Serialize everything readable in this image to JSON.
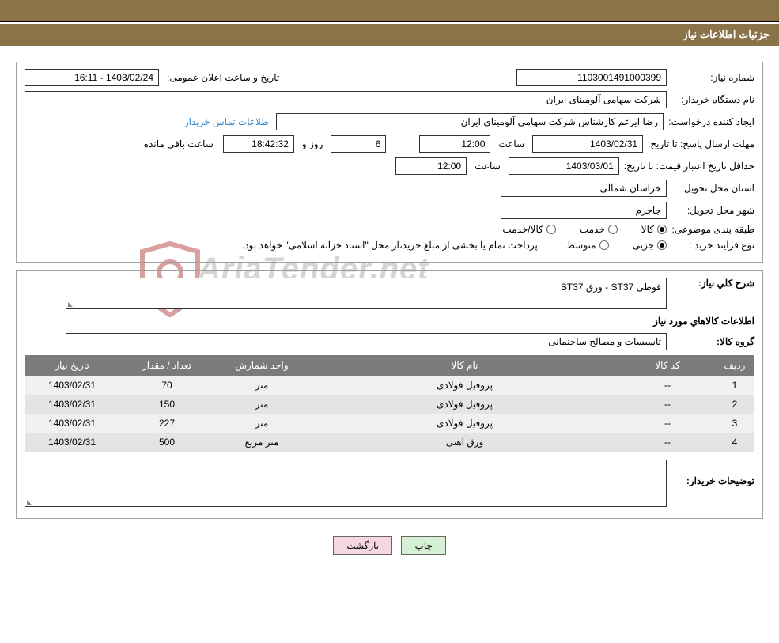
{
  "header": {
    "title": "جزئیات اطلاعات نیاز"
  },
  "watermark": {
    "text": "AriaTender.net",
    "shield_color": "#d9a0a0"
  },
  "info": {
    "need_number_label": "شماره نیاز:",
    "need_number": "1103001491000399",
    "announce_label": "تاریخ و ساعت اعلان عمومی:",
    "announce_value": "1403/02/24 - 16:11",
    "buyer_device_label": "نام دستگاه خریدار:",
    "buyer_device": "شرکت سهامی آلومینای ایران",
    "requester_label": "ایجاد کننده درخواست:",
    "requester": "رضا ایرغم کارشناس شرکت سهامی آلومینای ایران",
    "contact_link": "اطلاعات تماس خریدار",
    "deadline_label": "مهلت ارسال پاسخ: تا تاریخ:",
    "deadline_date": "1403/02/31",
    "time_label": "ساعت",
    "deadline_time": "12:00",
    "days_value": "6",
    "days_and": "روز و",
    "remaining_time": "18:42:32",
    "remaining_label": "ساعت باقي مانده",
    "validity_label": "حداقل تاریخ اعتبار قیمت: تا تاریخ:",
    "validity_date": "1403/03/01",
    "validity_time": "12:00",
    "province_label": "استان محل تحویل:",
    "province": "خراسان شمالی",
    "city_label": "شهر محل تحویل:",
    "city": "جاجرم",
    "category_label": "طبقه بندی موضوعی:",
    "cat_goods": "کالا",
    "cat_service": "خدمت",
    "cat_both": "کالا/خدمت",
    "purchase_type_label": "نوع فرآیند خرید :",
    "purchase_minor": "جزیی",
    "purchase_medium": "متوسط",
    "purchase_note": "پرداخت تمام یا بخشی از مبلغ خرید،از محل \"اسناد خزانه اسلامی\" خواهد بود."
  },
  "details": {
    "overall_desc_label": "شرح كلي نياز:",
    "overall_desc": "قوطی ST37 - ورق ST37",
    "items_header": "اطلاعات كالاهاي مورد نياز",
    "group_label": "گروه کالا:",
    "group_value": "تاسیسات و مصالح ساختمانی",
    "table": {
      "columns": [
        "ردیف",
        "کد کالا",
        "نام کالا",
        "واحد شمارش",
        "تعداد / مقدار",
        "تاریخ نیاز"
      ],
      "col_widths": [
        "50px",
        "120px",
        "auto",
        "120px",
        "120px",
        "120px"
      ],
      "rows": [
        [
          "1",
          "--",
          "پروفیل فولادی",
          "متر",
          "70",
          "1403/02/31"
        ],
        [
          "2",
          "--",
          "پروفیل فولادی",
          "متر",
          "150",
          "1403/02/31"
        ],
        [
          "3",
          "--",
          "پروفیل فولادی",
          "متر",
          "227",
          "1403/02/31"
        ],
        [
          "4",
          "--",
          "ورق آهنی",
          "متر مربع",
          "500",
          "1403/02/31"
        ]
      ]
    },
    "buyer_notes_label": "توضیحات خریدار:",
    "buyer_notes": ""
  },
  "buttons": {
    "print": "چاپ",
    "back": "بازگشت"
  },
  "colors": {
    "header_bg": "#8a7249",
    "header_text": "#ffffff",
    "table_header_bg": "#7b7b7b",
    "row_odd": "#f0f0f0",
    "row_even": "#e4e4e4",
    "link": "#3388cc",
    "btn_print_bg": "#d6f0d6",
    "btn_back_bg": "#f6d6e0"
  }
}
